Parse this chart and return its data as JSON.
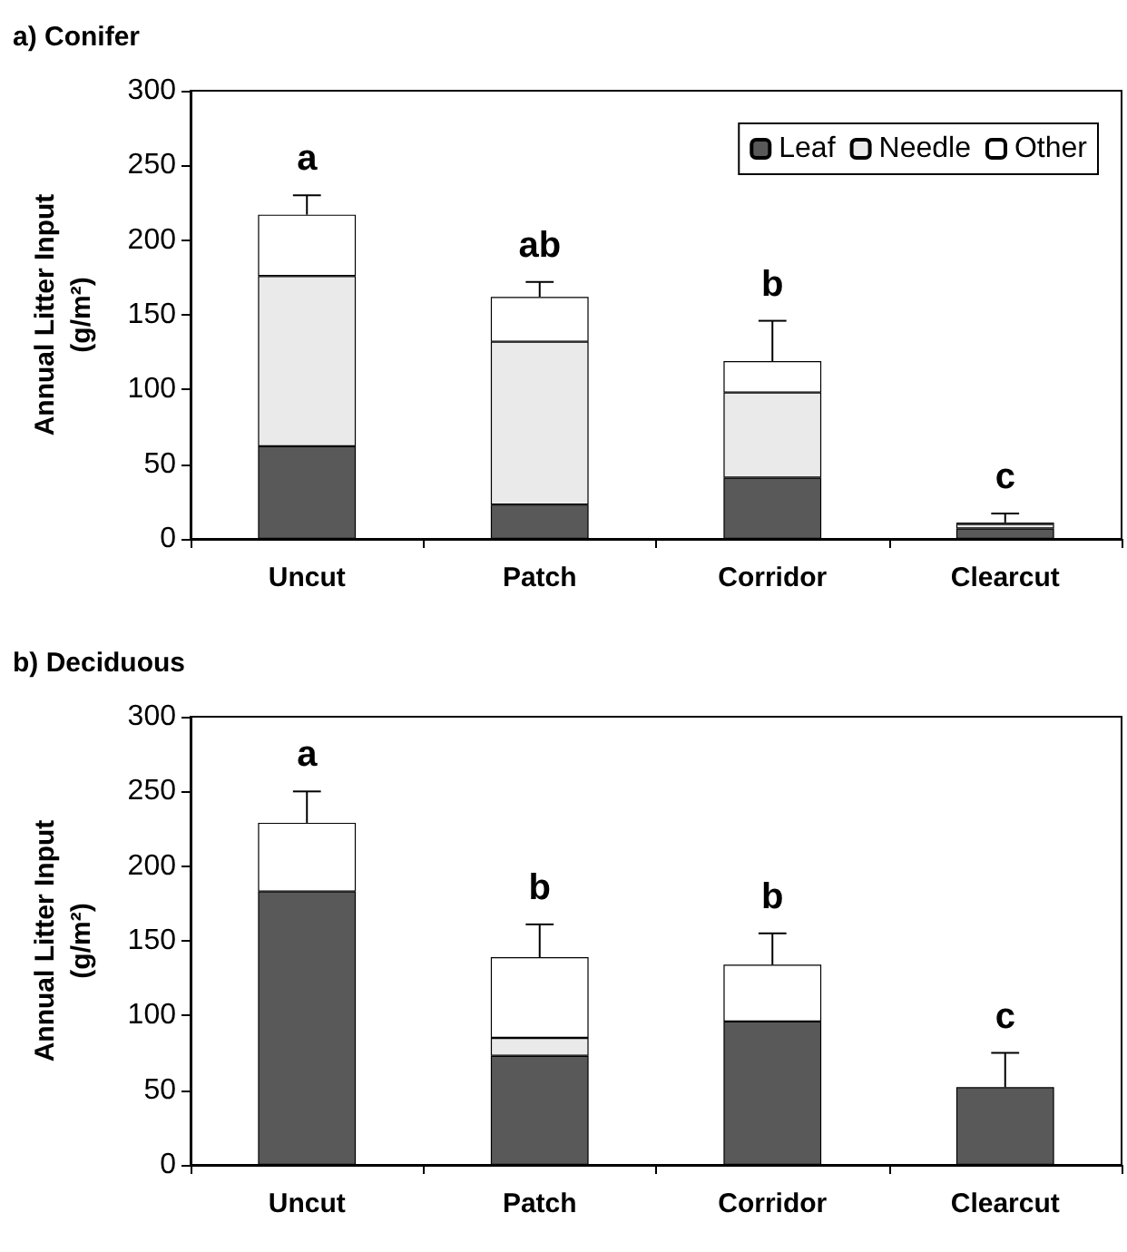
{
  "chart_data": [
    {
      "type": "bar",
      "title": "a) Conifer",
      "ylabel": "Annual Litter Input\n(g/m²)",
      "categories": [
        "Uncut",
        "Patch",
        "Corridor",
        "Clearcut"
      ],
      "stacked": true,
      "series": [
        {
          "name": "Leaf",
          "color": "#595959",
          "values": [
            62,
            23,
            41,
            7
          ]
        },
        {
          "name": "Needle",
          "color": "#eaeaea",
          "values": [
            114,
            109,
            57,
            3
          ]
        },
        {
          "name": "Other",
          "color": "#ffffff",
          "values": [
            41,
            30,
            21,
            1
          ],
          "errors": [
            [
              217,
              230
            ],
            [
              162,
              172
            ],
            [
              119,
              146
            ],
            [
              11,
              17
            ]
          ]
        }
      ],
      "ylim": [
        0,
        300
      ],
      "yticks": [
        0,
        50,
        100,
        150,
        200,
        250,
        300
      ],
      "grid": false,
      "legend": "top right",
      "annotations": [
        "a",
        "ab",
        "b",
        "c"
      ]
    },
    {
      "type": "bar",
      "title": "b) Deciduous",
      "ylabel": "Annual Litter Input\n(g/m²)",
      "categories": [
        "Uncut",
        "Patch",
        "Corridor",
        "Clearcut"
      ],
      "stacked": true,
      "series": [
        {
          "color": "#595959",
          "values": [
            183,
            73,
            96,
            52
          ]
        },
        {
          "color": "#eaeaea",
          "values": [
            0,
            12,
            0,
            0
          ]
        },
        {
          "color": "#ffffff",
          "values": [
            46,
            54,
            38,
            0
          ],
          "errors": [
            [
              229,
              250
            ],
            [
              139,
              161
            ],
            [
              134,
              155
            ],
            [
              52,
              75
            ]
          ]
        }
      ],
      "ylim": [
        0,
        300
      ],
      "yticks": [
        0,
        50,
        100,
        150,
        200,
        250,
        300
      ],
      "grid": false,
      "legend": false,
      "annotations": [
        "a",
        "b",
        "b",
        "c"
      ]
    }
  ]
}
